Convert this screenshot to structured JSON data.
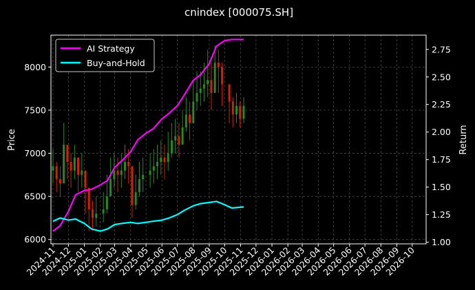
{
  "chart_data": {
    "type": "line",
    "title": "cnindex [000075.SH]",
    "ylabel_left": "Price",
    "ylabel_right": "Return",
    "grid": true,
    "legend_position": "top-left",
    "x_ticks": [
      "2024-11",
      "2024-12",
      "2025-01",
      "2025-02",
      "2025-03",
      "2025-04",
      "2025-05",
      "2025-06",
      "2025-07",
      "2025-08",
      "2025-09",
      "2025-10",
      "2025-11",
      "2025-12",
      "2026-01",
      "2026-02",
      "2026-03",
      "2026-04",
      "2026-05",
      "2026-06",
      "2026-07",
      "2026-08",
      "2026-09",
      "2026-10"
    ],
    "xlim": [
      "2024-10-28",
      "2026-10-28"
    ],
    "y_left_ticks": [
      6000,
      6500,
      7000,
      7500,
      8000
    ],
    "y_left_lim": [
      5950,
      8370
    ],
    "y_right_ticks": [
      "1.00",
      "1.25",
      "1.50",
      "1.75",
      "2.00",
      "2.25",
      "2.50",
      "2.75"
    ],
    "y_right_lim": [
      0.985,
      2.88
    ],
    "price_series": {
      "name": "Price (candles)",
      "up_color": "#228b22",
      "down_color": "#d62000",
      "dates": [
        "2024-11-01",
        "2024-11-08",
        "2024-11-15",
        "2024-11-22",
        "2024-11-29",
        "2024-12-06",
        "2024-12-13",
        "2024-12-20",
        "2024-12-27",
        "2025-01-03",
        "2025-01-10",
        "2025-01-17",
        "2025-01-24",
        "2025-02-07",
        "2025-02-14",
        "2025-02-21",
        "2025-02-28",
        "2025-03-07",
        "2025-03-14",
        "2025-03-21",
        "2025-03-28",
        "2025-04-04",
        "2025-04-11",
        "2025-04-18",
        "2025-04-25",
        "2025-05-09",
        "2025-05-16",
        "2025-05-23",
        "2025-05-30",
        "2025-06-06",
        "2025-06-13",
        "2025-06-20",
        "2025-06-27",
        "2025-07-04",
        "2025-07-11",
        "2025-07-18",
        "2025-07-25",
        "2025-08-01",
        "2025-08-08",
        "2025-08-15",
        "2025-08-22",
        "2025-08-29",
        "2025-09-05",
        "2025-09-12",
        "2025-09-19",
        "2025-09-26",
        "2025-10-10",
        "2025-10-17",
        "2025-10-24",
        "2025-10-31",
        "2025-11-07"
      ],
      "close": [
        6850,
        6700,
        6650,
        7100,
        6900,
        6800,
        6950,
        6750,
        6800,
        6600,
        6350,
        6250,
        6300,
        6350,
        6500,
        6700,
        6800,
        6750,
        6800,
        6900,
        6850,
        6400,
        6550,
        6700,
        6750,
        6800,
        6850,
        6900,
        6950,
        6900,
        7000,
        7150,
        7200,
        7100,
        7300,
        7450,
        7350,
        7600,
        7700,
        7750,
        7800,
        7850,
        7700,
        8050,
        8000,
        7800,
        7600,
        7450,
        7550,
        7400,
        7550
      ],
      "high": [
        7050,
        6900,
        6850,
        7350,
        7100,
        7000,
        7100,
        6950,
        7000,
        6800,
        6550,
        6450,
        6500,
        6550,
        6750,
        6950,
        7000,
        6950,
        7000,
        7100,
        7050,
        6850,
        6750,
        6900,
        6950,
        7000,
        7050,
        7100,
        7150,
        7100,
        7250,
        7350,
        7400,
        7350,
        7500,
        7650,
        7600,
        7850,
        7950,
        7950,
        8050,
        8200,
        8050,
        8250,
        8200,
        8050,
        7800,
        7650,
        7700,
        7600,
        7650
      ],
      "low": [
        6650,
        6550,
        6500,
        6750,
        6700,
        6600,
        6700,
        6550,
        6600,
        6300,
        6100,
        6100,
        6150,
        6200,
        6300,
        6500,
        6600,
        6550,
        6600,
        6700,
        6650,
        6250,
        6350,
        6500,
        6550,
        6600,
        6650,
        6700,
        6750,
        6700,
        6800,
        6950,
        7000,
        6950,
        7100,
        7250,
        7150,
        7400,
        7500,
        7550,
        7600,
        7650,
        7500,
        7800,
        7700,
        7550,
        7350,
        7300,
        7350,
        7300,
        7350
      ]
    },
    "series": [
      {
        "name": "AI Strategy",
        "color": "#ff00ff",
        "dates": [
          "2024-11-01",
          "2024-11-15",
          "2024-12-01",
          "2024-12-15",
          "2025-01-01",
          "2025-01-15",
          "2025-02-01",
          "2025-02-15",
          "2025-03-01",
          "2025-03-15",
          "2025-04-01",
          "2025-04-15",
          "2025-05-01",
          "2025-05-15",
          "2025-06-01",
          "2025-06-15",
          "2025-07-01",
          "2025-07-15",
          "2025-08-01",
          "2025-08-15",
          "2025-09-01",
          "2025-09-15",
          "2025-10-01",
          "2025-10-15",
          "2025-11-07"
        ],
        "values": [
          1.1,
          1.15,
          1.28,
          1.43,
          1.47,
          1.48,
          1.52,
          1.56,
          1.68,
          1.74,
          1.82,
          1.93,
          1.99,
          2.03,
          2.12,
          2.17,
          2.24,
          2.34,
          2.47,
          2.52,
          2.62,
          2.78,
          2.83,
          2.84,
          2.84
        ]
      },
      {
        "name": "Buy-and-Hold",
        "color": "#00ffff",
        "dates": [
          "2024-11-01",
          "2024-11-15",
          "2024-12-01",
          "2024-12-15",
          "2025-01-01",
          "2025-01-15",
          "2025-02-01",
          "2025-02-15",
          "2025-03-01",
          "2025-03-15",
          "2025-04-01",
          "2025-04-15",
          "2025-05-01",
          "2025-05-15",
          "2025-06-01",
          "2025-06-15",
          "2025-07-01",
          "2025-07-15",
          "2025-08-01",
          "2025-08-15",
          "2025-09-01",
          "2025-09-15",
          "2025-10-01",
          "2025-10-15",
          "2025-11-07"
        ],
        "values": [
          1.19,
          1.22,
          1.2,
          1.21,
          1.17,
          1.12,
          1.1,
          1.12,
          1.16,
          1.17,
          1.18,
          1.17,
          1.18,
          1.19,
          1.2,
          1.22,
          1.25,
          1.29,
          1.33,
          1.35,
          1.36,
          1.37,
          1.34,
          1.31,
          1.32
        ]
      }
    ]
  }
}
